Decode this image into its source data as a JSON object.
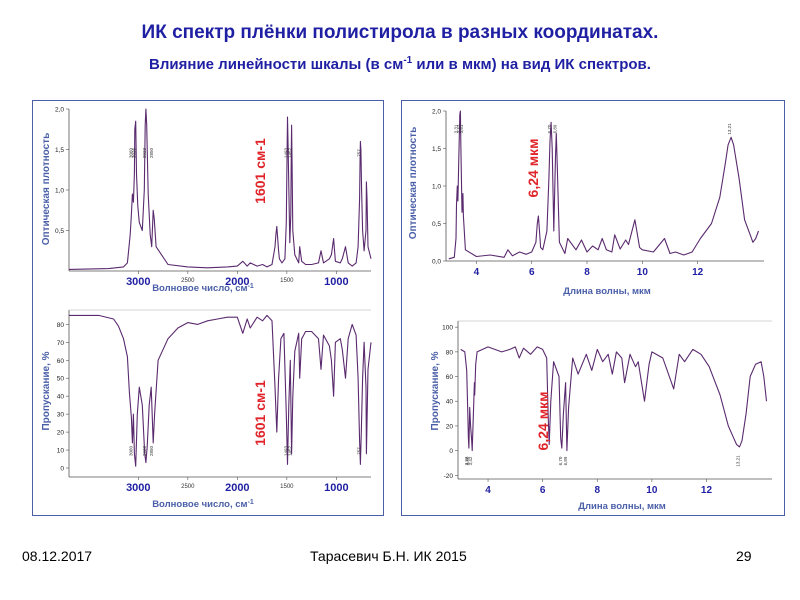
{
  "slide": {
    "title": "ИК спектр плёнки полистирола в разных координатах.",
    "subtitle_pre": "Влияние линейности шкалы (в см",
    "subtitle_sup": "-1",
    "subtitle_post": " или в мкм) на вид ИК спектров."
  },
  "footer": {
    "date": "08.12.2017",
    "author": "Тарасевич Б.Н.   ИК 2015",
    "page": "29"
  },
  "colors": {
    "title": "#1f1fa3",
    "axis_label": "#4a5fa8",
    "spectrum": "#5a2a6e",
    "annotation": "#e0242a",
    "frame": "#4a5fa8"
  },
  "chart_data": [
    {
      "id": "abs-wavenumber",
      "type": "line",
      "ylabel": "Оптическая плотность",
      "xlabel": "Волновое число, см",
      "xlabel_sup": "-1",
      "xlim": [
        3700,
        650
      ],
      "ylim": [
        0,
        2.0
      ],
      "yticks": [
        "0,5",
        "1,0",
        "1,5",
        "2,0"
      ],
      "ytick_values": [
        0.5,
        1.0,
        1.5,
        2.0
      ],
      "xticks_big": [
        {
          "v": 3000,
          "t": "3000"
        },
        {
          "v": 2000,
          "t": "2000"
        },
        {
          "v": 1000,
          "t": "1000"
        }
      ],
      "xticks_small": [
        {
          "v": 2500,
          "t": "2500"
        },
        {
          "v": 1500,
          "t": "1500"
        }
      ],
      "peak_labels": [
        "3060",
        "3026",
        "2923",
        "2850",
        "1493",
        "1452",
        "757"
      ],
      "annotation": "1601 см-1",
      "series": [
        {
          "x": [
            3700,
            3300,
            3150,
            3110,
            3090,
            3082,
            3070,
            3060,
            3050,
            3040,
            3035,
            3026,
            3018,
            3005,
            2990,
            2960,
            2940,
            2930,
            2923,
            2915,
            2900,
            2880,
            2865,
            2850,
            2840,
            2820,
            2700,
            2500,
            2300,
            2100,
            2000,
            1945,
            1900,
            1870,
            1800,
            1745,
            1700,
            1650,
            1620,
            1610,
            1601,
            1592,
            1583,
            1575,
            1550,
            1520,
            1505,
            1497,
            1493,
            1488,
            1470,
            1460,
            1455,
            1452,
            1448,
            1440,
            1420,
            1380,
            1370,
            1350,
            1330,
            1310,
            1250,
            1180,
            1155,
            1130,
            1070,
            1050,
            1028,
            1010,
            960,
            940,
            908,
            880,
            840,
            800,
            780,
            765,
            760,
            757,
            752,
            745,
            735,
            720,
            700,
            696,
            690,
            680,
            660,
            650
          ],
          "y": [
            0.02,
            0.03,
            0.05,
            0.1,
            0.35,
            0.45,
            0.7,
            0.95,
            0.85,
            1.2,
            1.75,
            1.85,
            1.2,
            0.8,
            0.6,
            0.5,
            1.0,
            1.8,
            2.0,
            1.8,
            0.95,
            0.45,
            0.3,
            0.75,
            0.65,
            0.3,
            0.08,
            0.05,
            0.04,
            0.05,
            0.06,
            0.12,
            0.06,
            0.1,
            0.06,
            0.08,
            0.05,
            0.08,
            0.3,
            0.45,
            0.55,
            0.4,
            0.25,
            0.15,
            0.1,
            0.15,
            0.6,
            1.5,
            1.9,
            1.6,
            0.35,
            0.7,
            1.5,
            1.8,
            1.4,
            0.5,
            0.2,
            0.1,
            0.3,
            0.12,
            0.1,
            0.08,
            0.08,
            0.1,
            0.25,
            0.1,
            0.15,
            0.2,
            0.4,
            0.12,
            0.1,
            0.15,
            0.3,
            0.1,
            0.06,
            0.1,
            0.3,
            0.9,
            1.4,
            1.6,
            1.5,
            1.0,
            0.5,
            0.25,
            0.5,
            1.1,
            0.9,
            0.3,
            0.2,
            0.15
          ]
        }
      ]
    },
    {
      "id": "trans-wavenumber",
      "type": "line",
      "ylabel": "Пропускание, %",
      "xlabel": "Волновое число, см",
      "xlabel_sup": "-1",
      "xlim": [
        3700,
        650
      ],
      "ylim": [
        -5,
        88
      ],
      "yticks": [
        "0",
        "10",
        "20",
        "30",
        "40",
        "50",
        "60",
        "70",
        "80"
      ],
      "ytick_values": [
        0,
        10,
        20,
        30,
        40,
        50,
        60,
        70,
        80
      ],
      "xticks_big": [
        {
          "v": 3000,
          "t": "3000"
        },
        {
          "v": 2000,
          "t": "2000"
        },
        {
          "v": 1000,
          "t": "1000"
        }
      ],
      "xticks_small": [
        {
          "v": 2500,
          "t": "2500"
        },
        {
          "v": 1500,
          "t": "1500"
        }
      ],
      "peak_labels": [
        "3060",
        "2923",
        "2850",
        "1493",
        "1452",
        "757"
      ],
      "annotation": "1601 см-1",
      "series": [
        {
          "x": [
            3700,
            3400,
            3250,
            3200,
            3150,
            3110,
            3090,
            3070,
            3060,
            3050,
            3040,
            3026,
            3010,
            2990,
            2960,
            2935,
            2923,
            2910,
            2890,
            2870,
            2850,
            2835,
            2800,
            2700,
            2600,
            2500,
            2400,
            2300,
            2200,
            2100,
            2000,
            1945,
            1900,
            1870,
            1800,
            1745,
            1700,
            1650,
            1620,
            1601,
            1583,
            1560,
            1530,
            1505,
            1493,
            1480,
            1465,
            1452,
            1440,
            1420,
            1380,
            1370,
            1350,
            1330,
            1310,
            1250,
            1180,
            1155,
            1130,
            1070,
            1050,
            1028,
            1010,
            960,
            940,
            908,
            880,
            840,
            800,
            780,
            765,
            757,
            748,
            735,
            720,
            700,
            696,
            690,
            680,
            660,
            650
          ],
          "y": [
            85,
            85,
            83,
            79,
            72,
            62,
            42,
            28,
            14,
            30,
            8,
            1,
            30,
            45,
            35,
            8,
            3,
            12,
            35,
            45,
            14,
            30,
            60,
            72,
            78,
            81,
            80,
            82,
            83,
            84,
            84,
            75,
            83,
            78,
            84,
            82,
            85,
            82,
            45,
            20,
            50,
            72,
            75,
            30,
            2,
            35,
            60,
            8,
            40,
            65,
            75,
            50,
            72,
            74,
            76,
            76,
            72,
            55,
            74,
            68,
            60,
            40,
            70,
            72,
            66,
            50,
            72,
            80,
            74,
            50,
            15,
            2,
            20,
            50,
            70,
            45,
            8,
            25,
            55,
            65,
            70
          ]
        }
      ]
    },
    {
      "id": "abs-wavelength",
      "type": "line",
      "ylabel": "Оптическая плотность",
      "xlabel": "Длина волны, мкм",
      "xlim": [
        2.9,
        14.4
      ],
      "ylim": [
        0,
        2.0
      ],
      "yticks": [
        "0,0",
        "0,5",
        "1,0",
        "1,5",
        "2,0"
      ],
      "ytick_values": [
        0,
        0.5,
        1.0,
        1.5,
        2.0
      ],
      "xticks": [
        "4",
        "6",
        "8",
        "10",
        "12"
      ],
      "xtick_values": [
        4,
        6,
        8,
        10,
        12
      ],
      "peak_labels": [
        "3,31",
        "3,42",
        "3,51",
        "6,70",
        "6,89",
        "13,21"
      ],
      "annotation": "6,24 мкм",
      "series": [
        {
          "x": [
            3.0,
            3.2,
            3.26,
            3.28,
            3.31,
            3.33,
            3.36,
            3.4,
            3.42,
            3.44,
            3.48,
            3.51,
            3.53,
            3.6,
            4.0,
            4.5,
            5.0,
            5.14,
            5.3,
            5.56,
            5.8,
            6.0,
            6.15,
            6.2,
            6.24,
            6.28,
            6.32,
            6.4,
            6.55,
            6.62,
            6.66,
            6.7,
            6.74,
            6.8,
            6.86,
            6.89,
            6.92,
            7.0,
            7.2,
            7.3,
            7.6,
            7.8,
            8.0,
            8.2,
            8.4,
            8.55,
            8.7,
            8.9,
            9.0,
            9.2,
            9.4,
            9.5,
            9.73,
            9.9,
            10.0,
            10.4,
            10.8,
            11.0,
            11.2,
            11.5,
            11.8,
            12.1,
            12.5,
            12.8,
            13.0,
            13.1,
            13.21,
            13.3,
            13.5,
            13.7,
            13.9,
            14.0,
            14.1,
            14.2
          ],
          "y": [
            0.03,
            0.05,
            0.3,
            0.75,
            1.0,
            0.8,
            1.3,
            1.95,
            2.0,
            1.5,
            0.65,
            0.9,
            0.6,
            0.15,
            0.06,
            0.08,
            0.05,
            0.15,
            0.07,
            0.12,
            0.09,
            0.12,
            0.25,
            0.5,
            0.6,
            0.4,
            0.18,
            0.15,
            0.4,
            1.1,
            1.6,
            1.85,
            1.5,
            0.4,
            1.4,
            1.7,
            1.3,
            0.25,
            0.1,
            0.3,
            0.15,
            0.28,
            0.12,
            0.2,
            0.15,
            0.3,
            0.15,
            0.12,
            0.35,
            0.16,
            0.28,
            0.22,
            0.55,
            0.18,
            0.15,
            0.12,
            0.3,
            0.1,
            0.12,
            0.08,
            0.12,
            0.3,
            0.5,
            0.85,
            1.3,
            1.55,
            1.65,
            1.55,
            1.1,
            0.55,
            0.35,
            0.25,
            0.3,
            0.4
          ]
        }
      ]
    },
    {
      "id": "trans-wavelength",
      "type": "line",
      "ylabel": "Пропускание, %",
      "xlabel": "Длина волны, мкм",
      "xlim": [
        2.9,
        14.4
      ],
      "ylim": [
        -23,
        105
      ],
      "yticks": [
        "-20",
        "0",
        "20",
        "40",
        "60",
        "80",
        "100"
      ],
      "ytick_values": [
        -20,
        0,
        20,
        40,
        60,
        80,
        100
      ],
      "xticks": [
        "4",
        "6",
        "8",
        "10",
        "12"
      ],
      "xtick_values": [
        4,
        6,
        8,
        10,
        12
      ],
      "peak_labels": [
        "3,27",
        "3,30",
        "3,42",
        "6,70",
        "6,89",
        "13,21"
      ],
      "annotation": "6,24 мкм",
      "series": [
        {
          "x": [
            3.0,
            3.15,
            3.22,
            3.26,
            3.28,
            3.3,
            3.33,
            3.36,
            3.4,
            3.42,
            3.45,
            3.5,
            3.51,
            3.55,
            3.6,
            4.0,
            4.5,
            4.8,
            5.0,
            5.14,
            5.3,
            5.56,
            5.8,
            6.0,
            6.15,
            6.2,
            6.24,
            6.3,
            6.4,
            6.6,
            6.66,
            6.7,
            6.76,
            6.84,
            6.89,
            6.95,
            7.1,
            7.3,
            7.6,
            7.8,
            8.0,
            8.2,
            8.4,
            8.55,
            8.7,
            8.9,
            9.0,
            9.2,
            9.4,
            9.5,
            9.73,
            9.9,
            10.0,
            10.4,
            10.8,
            11.0,
            11.2,
            11.5,
            11.8,
            12.1,
            12.5,
            12.8,
            13.0,
            13.1,
            13.21,
            13.3,
            13.45,
            13.6,
            13.8,
            14.0,
            14.1,
            14.2
          ],
          "y": [
            82,
            80,
            65,
            30,
            10,
            2,
            35,
            20,
            8,
            0,
            20,
            55,
            45,
            70,
            80,
            84,
            80,
            82,
            84,
            75,
            83,
            78,
            84,
            82,
            75,
            30,
            5,
            40,
            72,
            60,
            10,
            2,
            30,
            55,
            0,
            35,
            75,
            62,
            78,
            65,
            82,
            72,
            78,
            62,
            80,
            75,
            55,
            78,
            68,
            72,
            40,
            70,
            80,
            75,
            50,
            78,
            72,
            82,
            78,
            68,
            45,
            20,
            10,
            5,
            3,
            8,
            30,
            60,
            70,
            72,
            60,
            40
          ]
        }
      ]
    }
  ]
}
